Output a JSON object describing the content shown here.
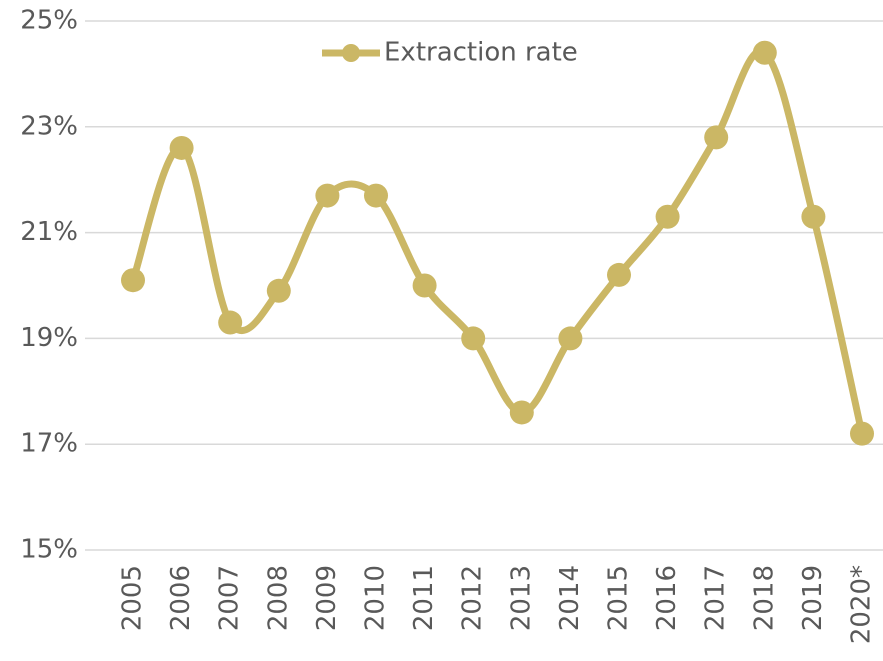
{
  "chart_data": {
    "type": "line",
    "categories": [
      "2005",
      "2006",
      "2007",
      "2008",
      "2009",
      "2010",
      "2011",
      "2012",
      "2013",
      "2014",
      "2015",
      "2016",
      "2017",
      "2018",
      "2019",
      "2020*"
    ],
    "series": [
      {
        "name": "Extraction rate",
        "color": "#cbb765",
        "values": [
          20.1,
          22.6,
          19.3,
          19.9,
          21.7,
          21.7,
          20.0,
          19.0,
          17.6,
          19.0,
          20.2,
          21.3,
          22.8,
          24.4,
          21.3,
          17.2
        ]
      }
    ],
    "ylim": [
      15,
      25
    ],
    "yticks": [
      {
        "value": 15,
        "label": "15%"
      },
      {
        "value": 17,
        "label": "17%"
      },
      {
        "value": 19,
        "label": "19%"
      },
      {
        "value": 21,
        "label": "21%"
      },
      {
        "value": 23,
        "label": "23%"
      },
      {
        "value": 25,
        "label": "25%"
      }
    ],
    "grid": true,
    "smooth": true,
    "legend": "top"
  }
}
